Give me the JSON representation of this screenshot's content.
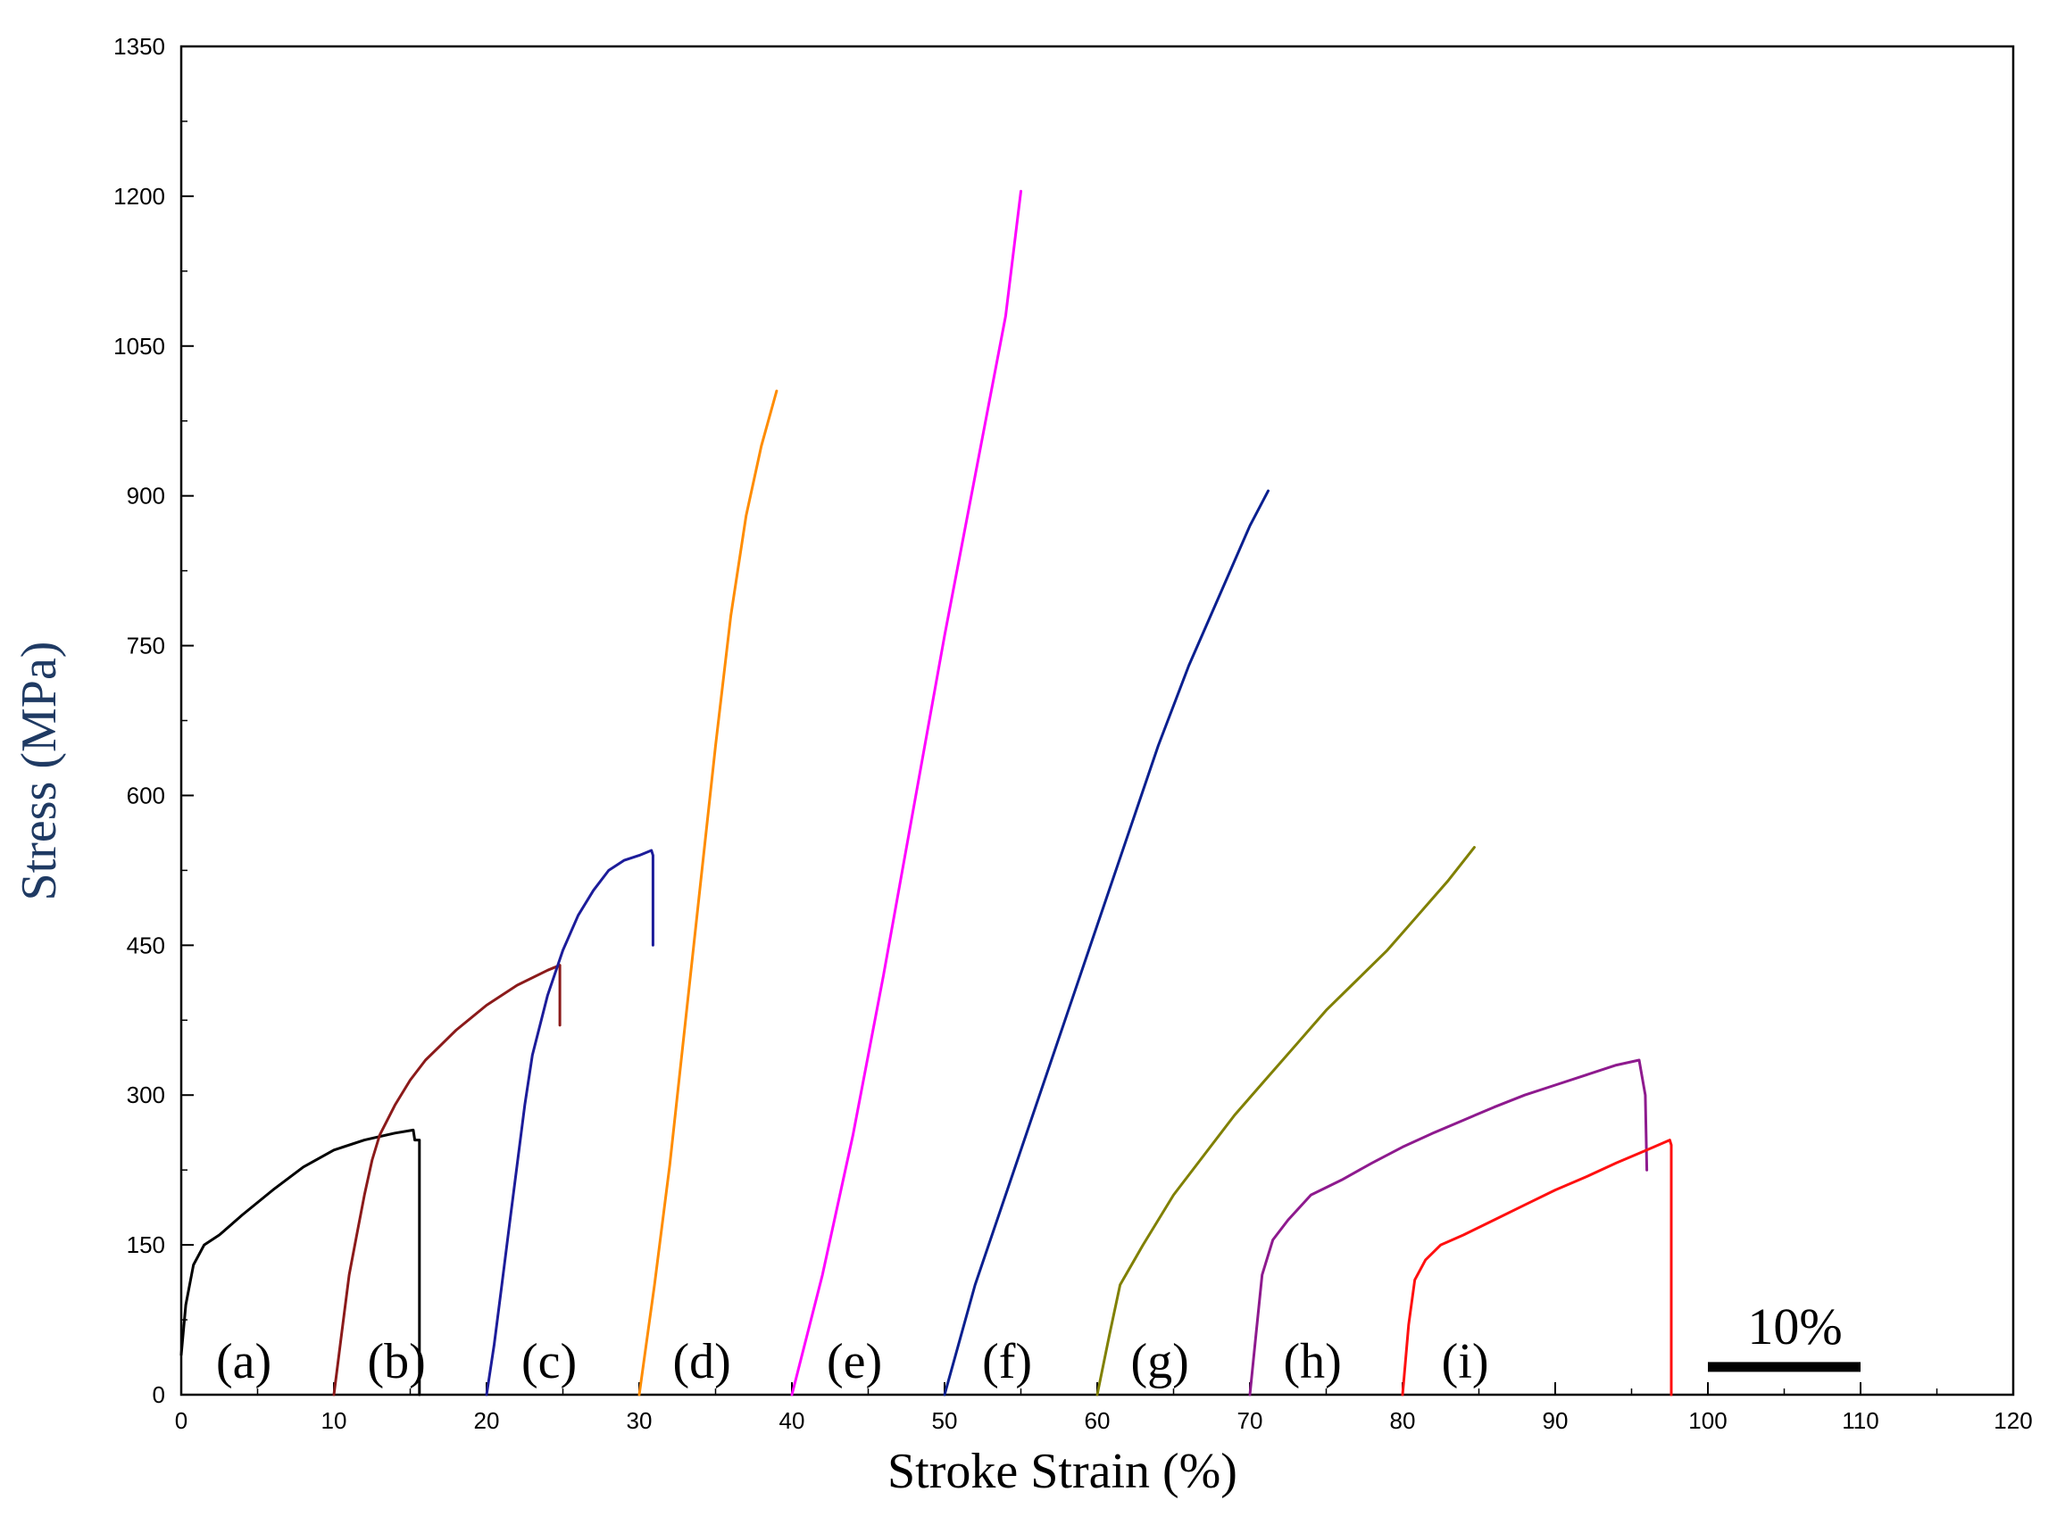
{
  "chart_data": {
    "type": "line",
    "title": "",
    "xlabel": "Stroke Strain (%)",
    "ylabel": "Stress (MPa)",
    "xlim": [
      0,
      120
    ],
    "ylim": [
      0,
      1350
    ],
    "xticks": [
      0,
      10,
      20,
      30,
      40,
      50,
      60,
      70,
      80,
      90,
      100,
      110,
      120
    ],
    "yticks": [
      0,
      150,
      300,
      450,
      600,
      750,
      900,
      1050,
      1200,
      1350
    ],
    "grid": false,
    "legend": "none",
    "scale_bar": {
      "label": "10%",
      "from": 100,
      "to": 110,
      "y": 35
    },
    "series": [
      {
        "label": "(a)",
        "color": "#000000",
        "x": [
          0,
          0.3,
          0.8,
          1.5,
          2.5,
          4,
          6,
          8,
          10,
          12,
          14,
          15.2,
          15.3,
          15.6,
          15.6
        ],
        "y": [
          40,
          90,
          130,
          150,
          160,
          180,
          205,
          228,
          245,
          255,
          262,
          265,
          255,
          255,
          0
        ]
      },
      {
        "label": "(b)",
        "color": "#8b1a1a",
        "x": [
          10,
          10.5,
          11,
          11.5,
          12,
          12.5,
          13,
          14,
          15,
          16,
          17,
          18,
          20,
          22,
          24,
          24.8,
          24.8
        ],
        "y": [
          0,
          60,
          120,
          160,
          200,
          235,
          260,
          290,
          315,
          335,
          350,
          365,
          390,
          410,
          425,
          430,
          370
        ]
      },
      {
        "label": "(c)",
        "color": "#1c1c9a",
        "x": [
          20,
          20.5,
          21,
          21.5,
          22,
          22.5,
          23,
          24,
          25,
          26,
          27,
          28,
          29,
          30,
          30.8,
          30.9,
          30.9
        ],
        "y": [
          0,
          50,
          110,
          170,
          230,
          290,
          340,
          400,
          445,
          480,
          505,
          525,
          535,
          540,
          545,
          540,
          450
        ]
      },
      {
        "label": "(d)",
        "color": "#ff8c00",
        "x": [
          30,
          31,
          32,
          33,
          34,
          35,
          36,
          37,
          38,
          39
        ],
        "y": [
          0,
          110,
          230,
          370,
          510,
          650,
          780,
          880,
          950,
          1005
        ]
      },
      {
        "label": "(e)",
        "color": "#ff00ff",
        "x": [
          40,
          42,
          44,
          46,
          48,
          50,
          52,
          54,
          55
        ],
        "y": [
          0,
          120,
          260,
          420,
          590,
          760,
          920,
          1080,
          1205
        ]
      },
      {
        "label": "(f)",
        "color": "#0a1f8f",
        "x": [
          50,
          52,
          54,
          56,
          58,
          60,
          62,
          64,
          66,
          68,
          70,
          71.2
        ],
        "y": [
          0,
          110,
          200,
          290,
          380,
          470,
          560,
          650,
          730,
          800,
          870,
          905
        ]
      },
      {
        "label": "(g)",
        "color": "#808000",
        "x": [
          60,
          60.8,
          61.5,
          63,
          65,
          67,
          69,
          71,
          73,
          75,
          77,
          79,
          81,
          83,
          84.7
        ],
        "y": [
          0,
          60,
          110,
          150,
          200,
          240,
          280,
          315,
          350,
          385,
          415,
          445,
          480,
          515,
          548
        ]
      },
      {
        "label": "(h)",
        "color": "#8e1a8e",
        "x": [
          70,
          70.4,
          70.8,
          71.5,
          72.5,
          74,
          76,
          78,
          80,
          82,
          84,
          86,
          88,
          90,
          92,
          94,
          95.5,
          95.9,
          96
        ],
        "y": [
          0,
          60,
          120,
          155,
          175,
          200,
          215,
          232,
          248,
          262,
          275,
          288,
          300,
          310,
          320,
          330,
          335,
          300,
          225
        ]
      },
      {
        "label": "(i)",
        "color": "#ff1010",
        "x": [
          80,
          80.4,
          80.8,
          81.5,
          82.5,
          84,
          86,
          88,
          90,
          92,
          94,
          96,
          97.5,
          97.6,
          97.6
        ],
        "y": [
          0,
          70,
          115,
          135,
          150,
          160,
          175,
          190,
          205,
          218,
          232,
          245,
          255,
          250,
          0
        ]
      }
    ]
  }
}
